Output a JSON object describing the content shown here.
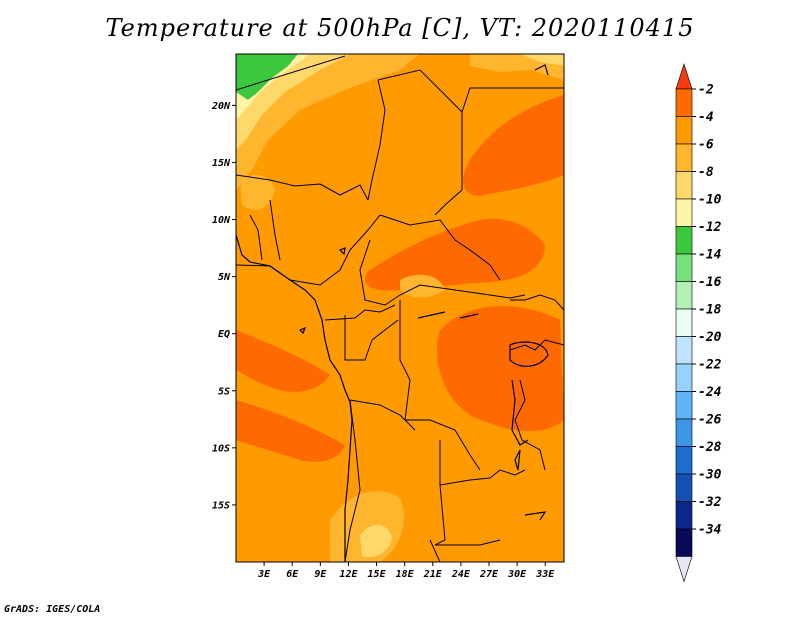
{
  "title": "Temperature at 500hPa [C], VT: 2020110415",
  "credit": "GrADS: IGES/COLA",
  "latitude_ticks": [
    "20N",
    "15N",
    "10N",
    "5N",
    "EQ",
    "5S",
    "10S",
    "15S"
  ],
  "longitude_ticks": [
    "3E",
    "6E",
    "9E",
    "12E",
    "15E",
    "18E",
    "21E",
    "24E",
    "27E",
    "30E",
    "33E"
  ],
  "colorbar": {
    "labels": [
      "-2",
      "-4",
      "-6",
      "-8",
      "-10",
      "-12",
      "-14",
      "-16",
      "-18",
      "-20",
      "-22",
      "-24",
      "-26",
      "-28",
      "-30",
      "-32",
      "-34"
    ],
    "colors": [
      "#f53c0f",
      "#ff6a00",
      "#ff9a00",
      "#ffb52e",
      "#ffd86a",
      "#fff5a8",
      "#3cc83c",
      "#78e078",
      "#b4f0b4",
      "#e6fff0",
      "#bfe4ff",
      "#96d2fa",
      "#5fb4f5",
      "#3c96e6",
      "#1e6ed2",
      "#1450b4",
      "#0a288c",
      "#0a0a5a",
      "#e6e6f5"
    ]
  },
  "chart_data": {
    "type": "heatmap",
    "title": "Temperature at 500hPa [C], VT: 2020110415",
    "units": "C",
    "x_axis": [
      "3E",
      "6E",
      "9E",
      "12E",
      "15E",
      "18E",
      "21E",
      "24E",
      "27E",
      "30E",
      "33E"
    ],
    "y_axis": [
      "20N",
      "15N",
      "10N",
      "5N",
      "EQ",
      "5S",
      "10S",
      "15S"
    ],
    "lon_range": [
      0,
      35
    ],
    "lat_range": [
      -20,
      24.5
    ],
    "dominant_range": [
      -6,
      -4
    ],
    "warmest_band": [
      -4,
      -2
    ],
    "coolest_areas": [
      -14,
      -12
    ]
  }
}
